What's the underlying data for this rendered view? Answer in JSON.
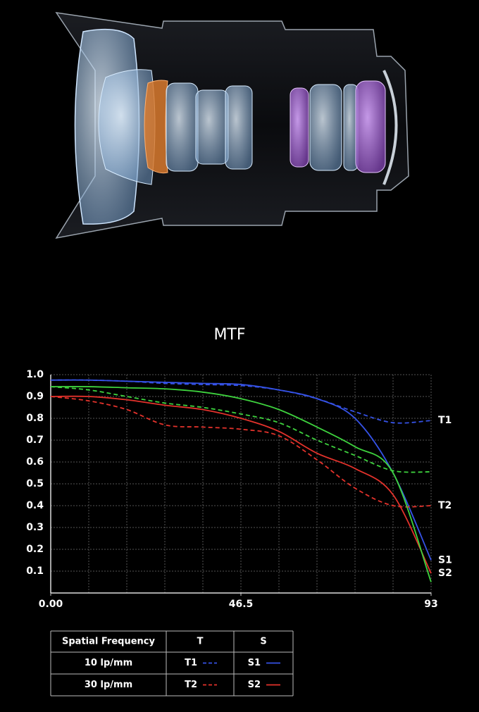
{
  "chart_data": {
    "type": "line",
    "title": "MTF",
    "x": [
      0,
      9.3,
      18.6,
      27.9,
      37.2,
      46.5,
      55.8,
      65.1,
      74.4,
      83.7,
      93
    ],
    "xlim": [
      0,
      93
    ],
    "xticks": [
      {
        "value": 0,
        "label": "0.00"
      },
      46.5,
      93
    ],
    "ylim": [
      0,
      1
    ],
    "yticks": [
      0.1,
      0.2,
      0.3,
      0.4,
      0.5,
      0.6,
      0.7,
      0.8,
      0.9,
      {
        "value": 1,
        "label": "1.0"
      }
    ],
    "grid": true,
    "series": [
      {
        "name": "T1",
        "color": "#3552e6",
        "dashed": true,
        "values": [
          0.975,
          0.975,
          0.97,
          0.96,
          0.955,
          0.95,
          0.93,
          0.89,
          0.83,
          0.78,
          0.79
        ]
      },
      {
        "name": "S1",
        "color": "#3552e6",
        "dashed": false,
        "values": [
          0.975,
          0.975,
          0.97,
          0.965,
          0.96,
          0.955,
          0.93,
          0.89,
          0.8,
          0.55,
          0.15
        ]
      },
      {
        "name": "T2",
        "color": "#e3322b",
        "dashed": true,
        "values": [
          0.9,
          0.88,
          0.84,
          0.77,
          0.76,
          0.75,
          0.72,
          0.61,
          0.48,
          0.4,
          0.4
        ]
      },
      {
        "name": "S2",
        "color": "#e3322b",
        "dashed": false,
        "values": [
          0.9,
          0.9,
          0.885,
          0.86,
          0.84,
          0.8,
          0.74,
          0.64,
          0.57,
          0.45,
          0.09
        ]
      },
      {
        "color": "#3ed23e",
        "dashed": false,
        "values": [
          0.945,
          0.945,
          0.94,
          0.935,
          0.92,
          0.89,
          0.84,
          0.76,
          0.67,
          0.55,
          0.05
        ]
      },
      {
        "color": "#3ed23e",
        "dashed": true,
        "values": [
          0.945,
          0.93,
          0.9,
          0.87,
          0.85,
          0.82,
          0.78,
          0.7,
          0.63,
          0.56,
          0.555
        ]
      }
    ],
    "table": {
      "header": [
        "Spatial Frequency",
        "T",
        "S"
      ],
      "rows": [
        "10 lp/mm",
        "30 lp/mm"
      ]
    }
  }
}
